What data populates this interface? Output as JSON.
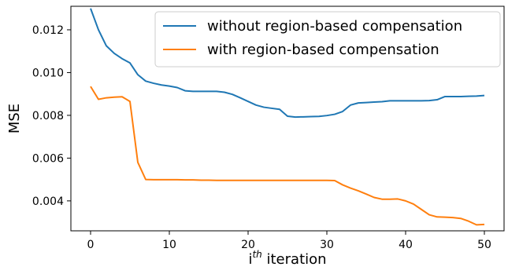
{
  "chart_data": {
    "type": "line",
    "title": "",
    "xlabel": {
      "base": "i",
      "superscript": "th",
      "rest": " iteration"
    },
    "ylabel": "MSE",
    "xlim": [
      -2.5,
      52.5
    ],
    "ylim": [
      0.0026,
      0.0131
    ],
    "xticks": [
      0,
      10,
      20,
      30,
      40,
      50
    ],
    "yticks": [
      0.004,
      0.006,
      0.008,
      0.01,
      0.012
    ],
    "xtick_labels": [
      "0",
      "10",
      "20",
      "30",
      "40",
      "50"
    ],
    "ytick_labels": [
      "0.004",
      "0.006",
      "0.008",
      "0.010",
      "0.012"
    ],
    "grid": false,
    "legend_position": "top-right",
    "series": [
      {
        "name": "without region-based compensation",
        "color": "#1f77b4",
        "x": [
          0,
          1,
          2,
          3,
          4,
          5,
          6,
          7,
          8,
          9,
          10,
          11,
          12,
          13,
          14,
          15,
          16,
          17,
          18,
          19,
          20,
          21,
          22,
          23,
          24,
          25,
          26,
          27,
          28,
          29,
          30,
          31,
          32,
          33,
          34,
          35,
          36,
          37,
          38,
          39,
          40,
          41,
          42,
          43,
          44,
          45,
          46,
          47,
          48,
          49,
          50
        ],
        "y": [
          0.013,
          0.012,
          0.01125,
          0.0109,
          0.01065,
          0.01045,
          0.0099,
          0.0096,
          0.0095,
          0.00942,
          0.00937,
          0.0093,
          0.00915,
          0.00912,
          0.00912,
          0.00912,
          0.00912,
          0.00908,
          0.00898,
          0.00882,
          0.00865,
          0.00848,
          0.00838,
          0.00833,
          0.00828,
          0.00796,
          0.00792,
          0.00793,
          0.00794,
          0.00795,
          0.00799,
          0.00805,
          0.00818,
          0.00848,
          0.00858,
          0.0086,
          0.00862,
          0.00864,
          0.00868,
          0.00868,
          0.00868,
          0.00868,
          0.00868,
          0.00869,
          0.00873,
          0.00888,
          0.00888,
          0.00888,
          0.00889,
          0.0089,
          0.00893
        ]
      },
      {
        "name": "with region-based compensation",
        "color": "#ff7f0e",
        "x": [
          0,
          1,
          2,
          3,
          4,
          5,
          6,
          7,
          8,
          9,
          10,
          11,
          12,
          13,
          14,
          15,
          16,
          17,
          18,
          19,
          20,
          21,
          22,
          23,
          24,
          25,
          26,
          27,
          28,
          29,
          30,
          31,
          32,
          33,
          34,
          35,
          36,
          37,
          38,
          39,
          40,
          41,
          42,
          43,
          44,
          45,
          46,
          47,
          48,
          49,
          50
        ],
        "y": [
          0.00935,
          0.00875,
          0.00882,
          0.00885,
          0.00887,
          0.00865,
          0.0058,
          0.005,
          0.00499,
          0.00499,
          0.00499,
          0.00499,
          0.00498,
          0.00498,
          0.00497,
          0.00497,
          0.00496,
          0.00496,
          0.00496,
          0.00496,
          0.00496,
          0.00496,
          0.00496,
          0.00496,
          0.00496,
          0.00496,
          0.00496,
          0.00496,
          0.00496,
          0.00496,
          0.00496,
          0.00495,
          0.00475,
          0.0046,
          0.00447,
          0.00432,
          0.00416,
          0.00408,
          0.00408,
          0.00409,
          0.004,
          0.00385,
          0.0036,
          0.00335,
          0.00325,
          0.00324,
          0.00322,
          0.00318,
          0.00305,
          0.00288,
          0.0029
        ]
      }
    ]
  }
}
